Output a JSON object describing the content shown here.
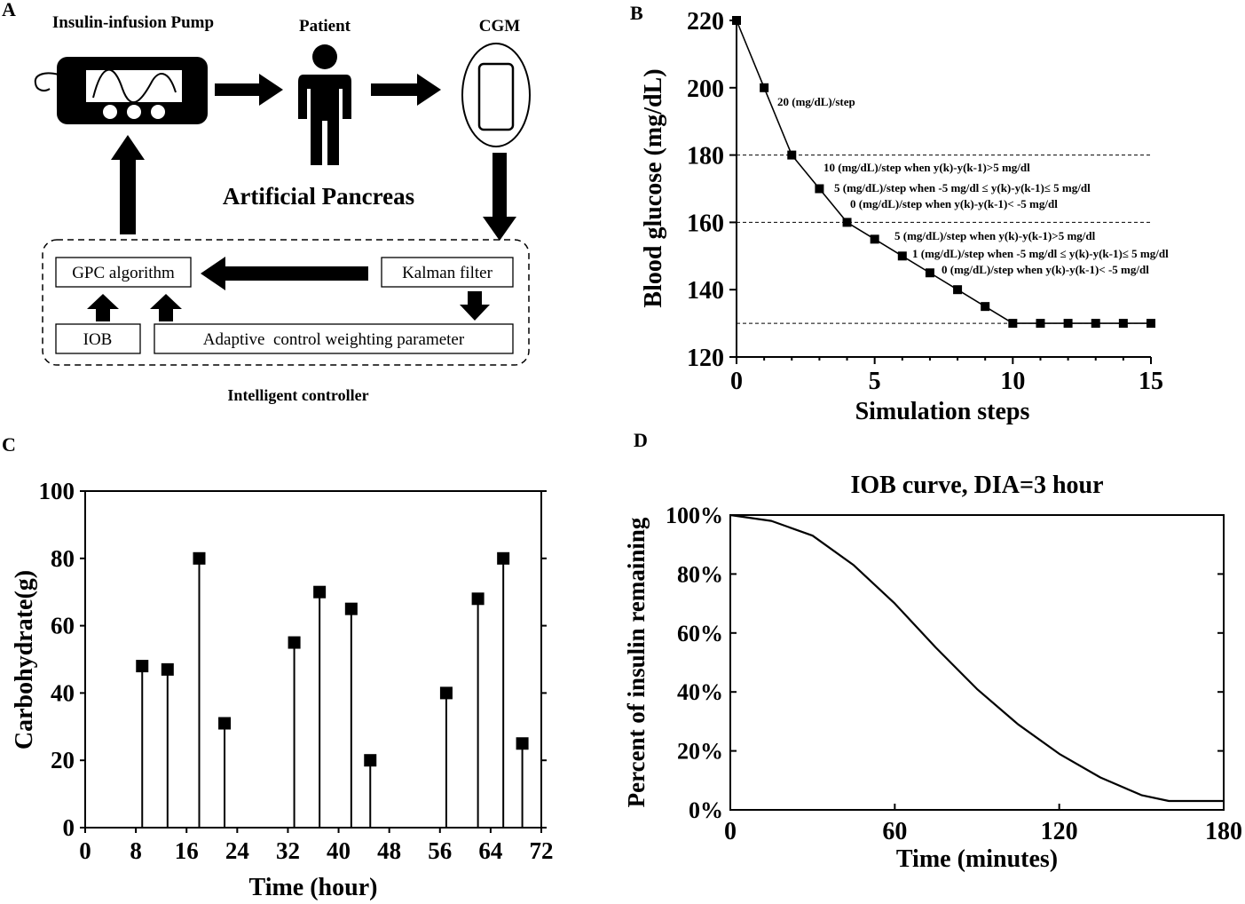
{
  "panels": {
    "a_label": "A",
    "b_label": "B",
    "c_label": "C",
    "d_label": "D"
  },
  "diagram": {
    "pump_label": "Insulin-infusion Pump",
    "patient_label": "Patient",
    "cgm_label": "CGM",
    "center_title": "Artificial Pancreas",
    "gpc_label": "GPC algorithm",
    "kalman_label": "Kalman filter",
    "iob_label": "IOB",
    "adaptive_label": "Adaptive  control weighting parameter",
    "controller_label": "Intelligent controller"
  },
  "chart_data": [
    {
      "id": "B",
      "type": "line",
      "title": "",
      "xlabel": "Simulation steps",
      "ylabel": "Blood glucose (mg/dL)",
      "xlim": [
        0,
        15
      ],
      "ylim": [
        120,
        220
      ],
      "xticks": [
        0,
        5,
        10,
        15
      ],
      "yticks": [
        120,
        140,
        160,
        180,
        200,
        220
      ],
      "x": [
        0,
        1,
        2,
        3,
        4,
        5,
        6,
        7,
        8,
        9,
        10,
        11,
        12,
        13,
        14,
        15
      ],
      "y": [
        220,
        200,
        180,
        170,
        160,
        155,
        150,
        145,
        140,
        135,
        130,
        130,
        130,
        130,
        130,
        130
      ],
      "reference_lines": [
        180,
        160,
        130
      ],
      "annotations": [
        "20 (mg/dL)/step",
        "10 (mg/dL)/step when y(k)-y(k-1)>5 mg/dl",
        "5 (mg/dL)/step  when -5 mg/dl ≤ y(k)-y(k-1)≤ 5 mg/dl",
        "0 (mg/dL)/step  when y(k)-y(k-1)< -5 mg/dl",
        "5 (mg/dL)/step  when y(k)-y(k-1)>5 mg/dl",
        "1 (mg/dL)/step  when -5 mg/dl ≤ y(k)-y(k-1)≤ 5 mg/dl",
        "0 (mg/dL)/step  when y(k)-y(k-1)< -5 mg/dl"
      ]
    },
    {
      "id": "C",
      "type": "bar",
      "title": "",
      "xlabel": "Time (hour)",
      "ylabel": "Carbohydrate(g)",
      "xlim": [
        0,
        72
      ],
      "ylim": [
        0,
        100
      ],
      "xticks": [
        0,
        8,
        16,
        24,
        32,
        40,
        48,
        56,
        64,
        72
      ],
      "yticks": [
        0,
        20,
        40,
        60,
        80,
        100
      ],
      "x": [
        9,
        13,
        18,
        22,
        33,
        37,
        42,
        45,
        57,
        62,
        66,
        69
      ],
      "values": [
        48,
        47,
        80,
        31,
        55,
        70,
        65,
        20,
        40,
        68,
        80,
        25
      ]
    },
    {
      "id": "D",
      "type": "line",
      "title": "IOB curve, DIA=3 hour",
      "xlabel": "Time (minutes)",
      "ylabel": "Percent of insulin remaining",
      "xlim": [
        0,
        180
      ],
      "ylim": [
        0,
        100
      ],
      "xticks": [
        0,
        60,
        120,
        180
      ],
      "yticks": [
        0,
        20,
        40,
        60,
        80,
        100
      ],
      "ytick_labels": [
        "0%",
        "20%",
        "40%",
        "60%",
        "80%",
        "100%"
      ],
      "x": [
        0,
        15,
        30,
        45,
        60,
        75,
        90,
        105,
        120,
        135,
        150,
        160,
        165,
        170,
        180
      ],
      "y": [
        100,
        98,
        93,
        83,
        70,
        55,
        41,
        29,
        19,
        11,
        5,
        3,
        3,
        3,
        3
      ]
    }
  ]
}
